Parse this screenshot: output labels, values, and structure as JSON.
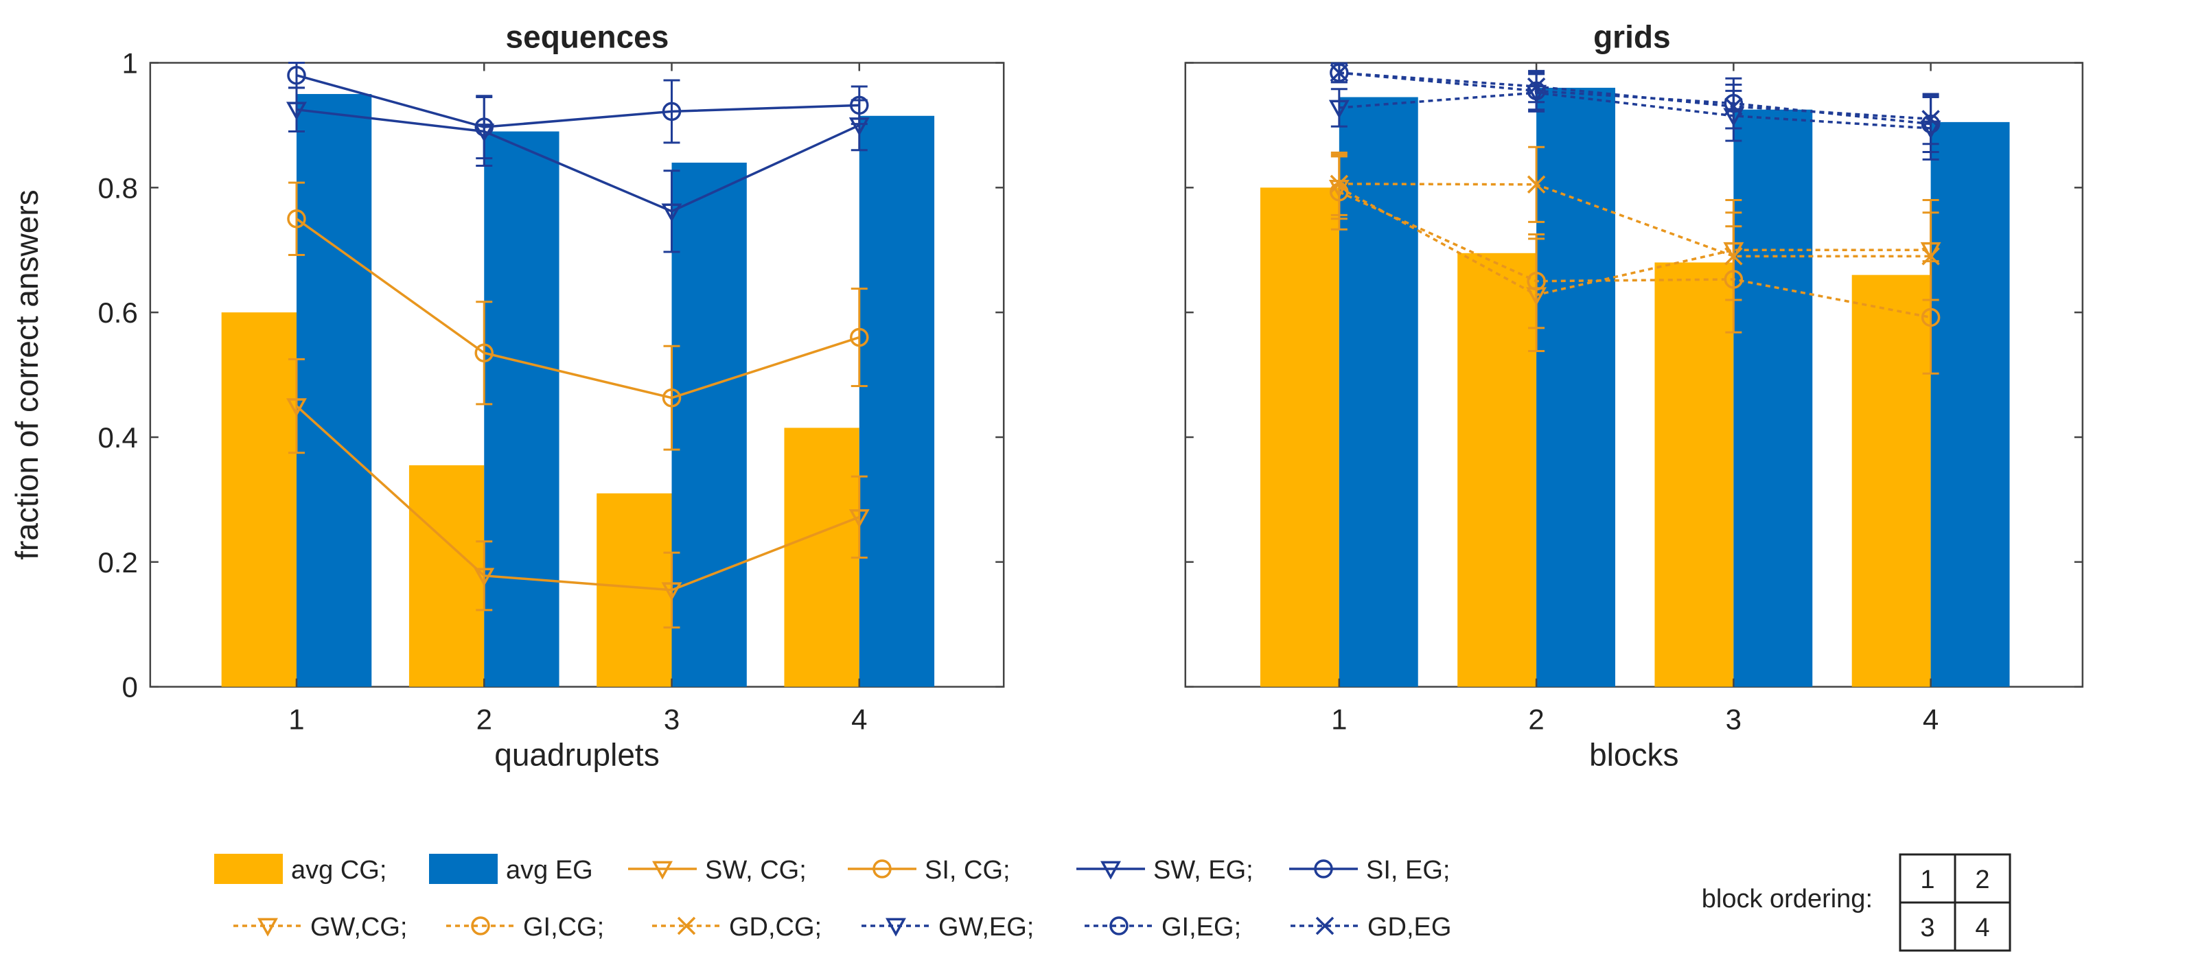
{
  "chart_data": [
    {
      "type": "bar",
      "title": "sequences",
      "xlabel": "quadruplets",
      "ylabel": "fraction of correct answers",
      "categories": [
        "1",
        "2",
        "3",
        "4"
      ],
      "yticks": [
        "0",
        "0.2",
        "0.4",
        "0.6",
        "0.8",
        "1"
      ],
      "ylim": [
        0,
        1
      ],
      "grid": false,
      "bars": [
        {
          "name": "avg CG",
          "color": "#FFB300",
          "values": [
            0.6,
            0.355,
            0.31,
            0.415
          ]
        },
        {
          "name": "avg EG",
          "color": "#0070C0",
          "values": [
            0.95,
            0.89,
            0.84,
            0.915
          ]
        }
      ],
      "lines": [
        {
          "name": "SW, CG",
          "color": "#E8961E",
          "marker": "triangle",
          "dash": "solid",
          "values": [
            0.45,
            0.178,
            0.155,
            0.272
          ],
          "err": [
            0.075,
            0.055,
            0.06,
            0.065
          ]
        },
        {
          "name": "SI, CG",
          "color": "#E8961E",
          "marker": "circle",
          "dash": "solid",
          "values": [
            0.75,
            0.535,
            0.463,
            0.56
          ],
          "err": [
            0.058,
            0.082,
            0.083,
            0.078
          ]
        },
        {
          "name": "SW, EG",
          "color": "#1F3C96",
          "marker": "triangle",
          "dash": "solid",
          "values": [
            0.925,
            0.89,
            0.762,
            0.9
          ],
          "err": [
            0.035,
            0.055,
            0.065,
            0.04
          ]
        },
        {
          "name": "SI, EG",
          "color": "#1F3C96",
          "marker": "circle",
          "dash": "solid",
          "values": [
            0.98,
            0.897,
            0.922,
            0.932
          ],
          "err": [
            0.02,
            0.05,
            0.05,
            0.03
          ]
        }
      ]
    },
    {
      "type": "bar",
      "title": "grids",
      "xlabel": "blocks",
      "ylabel": "",
      "categories": [
        "1",
        "2",
        "3",
        "4"
      ],
      "ylim": [
        0,
        1
      ],
      "grid": false,
      "bars": [
        {
          "name": "avg CG",
          "color": "#FFB300",
          "values": [
            0.8,
            0.695,
            0.68,
            0.66
          ]
        },
        {
          "name": "avg EG",
          "color": "#0070C0",
          "values": [
            0.945,
            0.96,
            0.925,
            0.905
          ]
        }
      ],
      "lines": [
        {
          "name": "GW,CG",
          "color": "#E8961E",
          "marker": "triangle",
          "dash": "dotted",
          "values": [
            0.8,
            0.628,
            0.7,
            0.7
          ],
          "err": [
            0.05,
            0.09,
            0.08,
            0.08
          ]
        },
        {
          "name": "GI,CG",
          "color": "#E8961E",
          "marker": "circle",
          "dash": "dotted",
          "values": [
            0.793,
            0.65,
            0.653,
            0.592
          ],
          "err": [
            0.06,
            0.075,
            0.085,
            0.09
          ]
        },
        {
          "name": "GD,CG",
          "color": "#E8961E",
          "marker": "x",
          "dash": "dotted",
          "values": [
            0.806,
            0.805,
            0.69,
            0.69
          ],
          "err": [
            0.05,
            0.06,
            0.07,
            0.07
          ]
        },
        {
          "name": "GW,EG",
          "color": "#1F3C96",
          "marker": "triangle",
          "dash": "dotted",
          "values": [
            0.928,
            0.952,
            0.915,
            0.895
          ],
          "err": [
            0.03,
            0.03,
            0.04,
            0.05
          ]
        },
        {
          "name": "GI,EG",
          "color": "#1F3C96",
          "marker": "circle",
          "dash": "dotted",
          "values": [
            0.984,
            0.955,
            0.935,
            0.902
          ],
          "err": [
            0.015,
            0.03,
            0.04,
            0.045
          ]
        },
        {
          "name": "GD,EG",
          "color": "#1F3C96",
          "marker": "x",
          "dash": "dotted",
          "values": [
            0.984,
            0.962,
            0.93,
            0.91
          ],
          "err": [
            0.015,
            0.025,
            0.035,
            0.04
          ]
        }
      ]
    }
  ],
  "legend": {
    "placement": "bottom",
    "row1": [
      {
        "label": "avg CG;",
        "kind": "bar",
        "color": "#FFB300"
      },
      {
        "label": "avg EG",
        "kind": "bar",
        "color": "#0070C0"
      },
      {
        "label": "SW, CG;",
        "kind": "line",
        "color": "#E8961E",
        "marker": "triangle",
        "dash": "solid"
      },
      {
        "label": "SI, CG;",
        "kind": "line",
        "color": "#E8961E",
        "marker": "circle",
        "dash": "solid"
      },
      {
        "label": "SW, EG;",
        "kind": "line",
        "color": "#1F3C96",
        "marker": "triangle",
        "dash": "solid"
      },
      {
        "label": "SI, EG;",
        "kind": "line",
        "color": "#1F3C96",
        "marker": "circle",
        "dash": "solid"
      }
    ],
    "row2": [
      {
        "label": "GW,CG;",
        "kind": "line",
        "color": "#E8961E",
        "marker": "triangle",
        "dash": "dotted"
      },
      {
        "label": "GI,CG;",
        "kind": "line",
        "color": "#E8961E",
        "marker": "circle",
        "dash": "dotted"
      },
      {
        "label": "GD,CG;",
        "kind": "line",
        "color": "#E8961E",
        "marker": "x",
        "dash": "dotted"
      },
      {
        "label": "GW,EG;",
        "kind": "line",
        "color": "#1F3C96",
        "marker": "triangle",
        "dash": "dotted"
      },
      {
        "label": "GI,EG;",
        "kind": "line",
        "color": "#1F3C96",
        "marker": "circle",
        "dash": "dotted"
      },
      {
        "label": "GD,EG",
        "kind": "line",
        "color": "#1F3C96",
        "marker": "x",
        "dash": "dotted"
      }
    ]
  },
  "block_ordering": {
    "label": "block ordering:",
    "cells": [
      "1",
      "2",
      "3",
      "4"
    ]
  }
}
